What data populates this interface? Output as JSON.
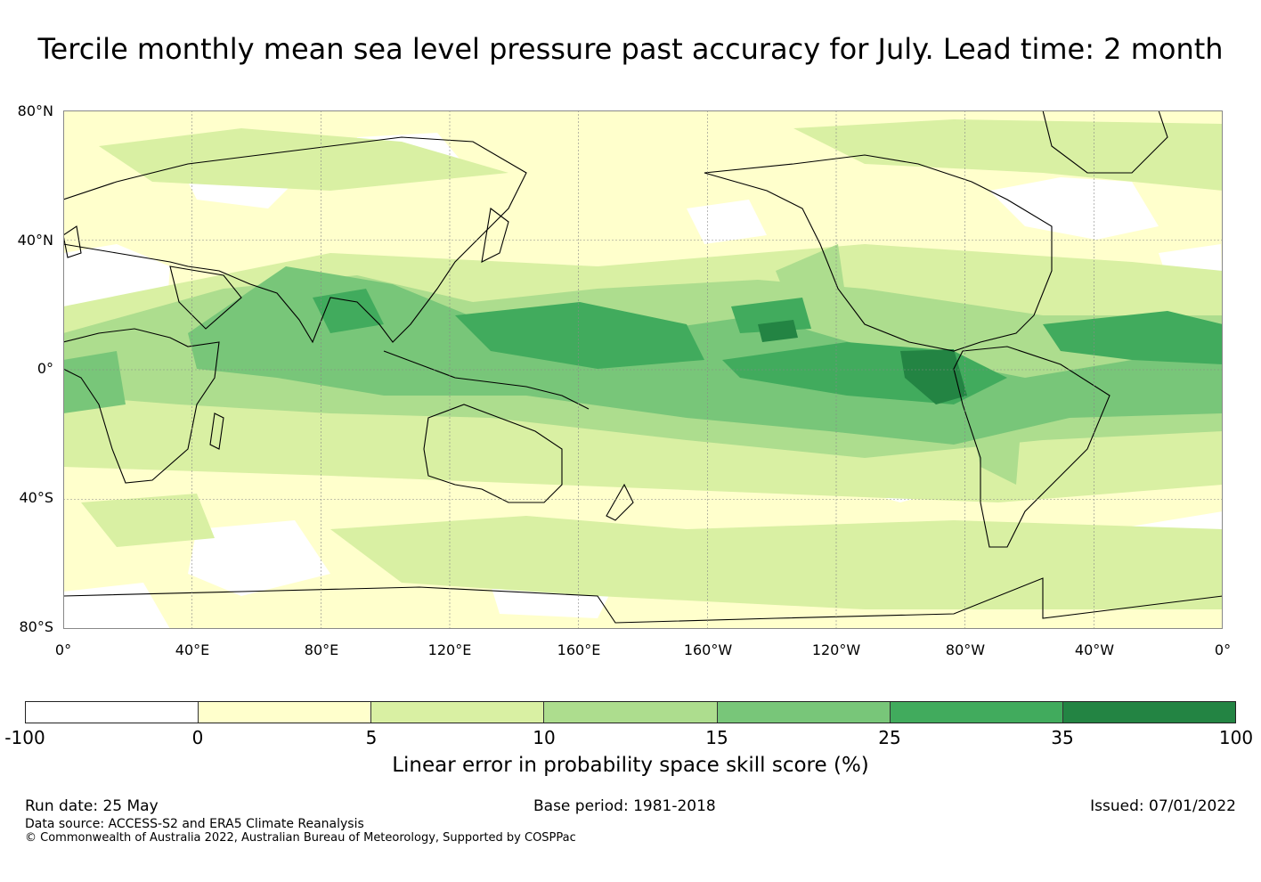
{
  "title": "Tercile monthly mean sea level pressure past accuracy for July. Lead time: 2 month",
  "map": {
    "lat_labels": [
      "80°N",
      "40°N",
      "0°",
      "40°S",
      "80°S"
    ],
    "lon_labels": [
      "0°",
      "40°E",
      "80°E",
      "120°E",
      "160°E",
      "160°W",
      "120°W",
      "80°W",
      "40°W",
      "0°"
    ],
    "colors": {
      "ocean_base": "#ffffcc",
      "land_outline": "#000000",
      "gridline": "#888888"
    }
  },
  "colorbar": {
    "ticks": [
      "-100",
      "0",
      "5",
      "10",
      "15",
      "25",
      "35",
      "100"
    ],
    "colors": [
      "#ffffff",
      "#ffffcc",
      "#d9f0a3",
      "#addd8e",
      "#78c679",
      "#41ab5d",
      "#238443"
    ],
    "label": "Linear error in probability space skill score (%)"
  },
  "footer": {
    "run_date": "Run date: 25 May",
    "base_period": "Base period: 1981-2018",
    "issued": "Issued: 07/01/2022",
    "data_source": "Data source: ACCESS-S2 and ERA5 Climate Reanalysis",
    "copyright": "© Commonwealth of Australia 2022, Australian Bureau of Meteorology, Supported by COSPPac"
  }
}
